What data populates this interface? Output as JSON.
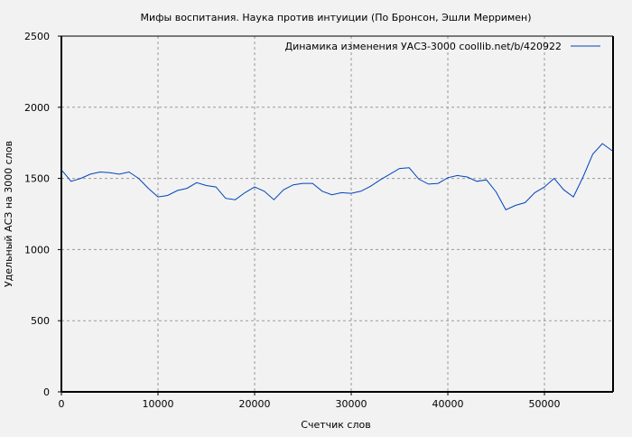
{
  "chart_data": {
    "type": "line",
    "title": "Мифы воспитания. Наука против интуиции (По Бронсон, Эшли Мерримен)",
    "xlabel": "Счетчик слов",
    "ylabel": "Удельный АСЗ на 3000 слов",
    "xlim": [
      0,
      57100
    ],
    "ylim": [
      0,
      2500
    ],
    "xticks": [
      0,
      10000,
      20000,
      30000,
      40000,
      50000
    ],
    "yticks": [
      0,
      500,
      1000,
      1500,
      2000,
      2500
    ],
    "grid": true,
    "legend_position": "top-right",
    "series": [
      {
        "name": "Динамика изменения УАСЗ-3000  coollib.net/b/420922",
        "color": "#0044bb",
        "x": [
          0,
          1000,
          2000,
          3000,
          4000,
          5000,
          6000,
          7000,
          8000,
          9000,
          10000,
          11000,
          12000,
          13000,
          14000,
          15000,
          16000,
          17000,
          18000,
          19000,
          20000,
          21000,
          22000,
          23000,
          24000,
          25000,
          26000,
          27000,
          28000,
          29000,
          30000,
          31000,
          32000,
          33000,
          34000,
          35000,
          36000,
          37000,
          38000,
          39000,
          40000,
          41000,
          42000,
          43000,
          44000,
          45000,
          46000,
          47000,
          48000,
          49000,
          50000,
          51000,
          52000,
          53000,
          54000,
          55000,
          56000,
          57000
        ],
        "y": [
          1560,
          1480,
          1500,
          1530,
          1545,
          1540,
          1530,
          1545,
          1500,
          1430,
          1370,
          1380,
          1415,
          1430,
          1470,
          1450,
          1440,
          1360,
          1350,
          1400,
          1440,
          1410,
          1350,
          1420,
          1455,
          1465,
          1465,
          1410,
          1385,
          1400,
          1395,
          1410,
          1445,
          1490,
          1530,
          1570,
          1575,
          1495,
          1460,
          1465,
          1505,
          1520,
          1510,
          1480,
          1490,
          1405,
          1280,
          1310,
          1330,
          1400,
          1440,
          1500,
          1420,
          1370,
          1510,
          1670,
          1745,
          1695
        ]
      }
    ]
  }
}
